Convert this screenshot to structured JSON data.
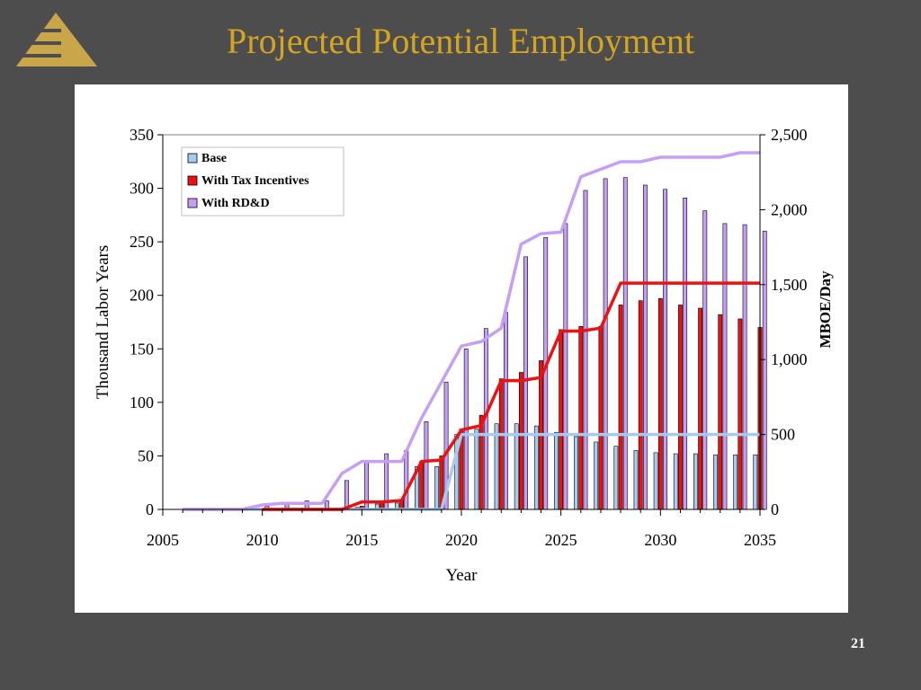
{
  "title": "Projected Potential Employment",
  "page_number": "21",
  "colors": {
    "background": "#4d4d4d",
    "title": "#d4a520",
    "base": "#a6cbf0",
    "tax": "#ee1111",
    "rdd": "#c79ef5"
  },
  "chart_data": {
    "type": "bar",
    "xlabel": "Year",
    "ylabel": "Thousand Labor Years",
    "y2label": "MBOE/Day",
    "xlim": [
      2005,
      2035
    ],
    "ylim": [
      0,
      350
    ],
    "y2lim": [
      0,
      2500
    ],
    "x_ticks": [
      "2005",
      "2010",
      "2015",
      "2020",
      "2025",
      "2030",
      "2035"
    ],
    "y_ticks": [
      "0",
      "50",
      "100",
      "150",
      "200",
      "250",
      "300",
      "350"
    ],
    "y2_ticks": [
      "0",
      "500",
      "1,000",
      "1,500",
      "2,000",
      "2,500"
    ],
    "legend_position": "top-left",
    "legend": [
      "Base",
      "With Tax Incentives",
      "With RD&D"
    ],
    "years": [
      2006,
      2007,
      2008,
      2009,
      2010,
      2011,
      2012,
      2013,
      2014,
      2015,
      2016,
      2017,
      2018,
      2019,
      2020,
      2021,
      2022,
      2023,
      2024,
      2025,
      2026,
      2027,
      2028,
      2029,
      2030,
      2031,
      2032,
      2033,
      2034,
      2035
    ],
    "bar_series": [
      {
        "name": "Base",
        "axis": "left",
        "values": [
          0,
          0,
          0,
          0,
          0,
          0,
          0,
          0,
          0,
          2,
          5,
          6,
          40,
          40,
          70,
          75,
          80,
          80,
          78,
          72,
          68,
          63,
          59,
          55,
          53,
          52,
          52,
          51,
          51,
          51
        ]
      },
      {
        "name": "With Tax Incentives",
        "axis": "left",
        "values": [
          0,
          0,
          0,
          0,
          0,
          0,
          0,
          0,
          0,
          3,
          6,
          9,
          45,
          50,
          75,
          88,
          122,
          128,
          139,
          168,
          171,
          171,
          191,
          195,
          197,
          191,
          188,
          182,
          178,
          170
        ]
      },
      {
        "name": "With RD&D",
        "axis": "left",
        "values": [
          0,
          1,
          0,
          0,
          3,
          5,
          8,
          8,
          27,
          44,
          52,
          55,
          82,
          119,
          150,
          169,
          184,
          236,
          254,
          267,
          298,
          309,
          310,
          303,
          299,
          291,
          279,
          267,
          266,
          260
        ]
      }
    ],
    "line_series": [
      {
        "name": "Base",
        "axis": "right",
        "x": [
          2006,
          2010,
          2015,
          2019,
          2020,
          2025,
          2035
        ],
        "values": [
          0,
          0,
          0,
          0,
          500,
          500,
          500
        ]
      },
      {
        "name": "With Tax Incentives",
        "axis": "right",
        "x": [
          2010,
          2013,
          2014,
          2015,
          2016,
          2017,
          2018,
          2019,
          2020,
          2021,
          2022,
          2023,
          2024,
          2025,
          2026,
          2027,
          2028,
          2029,
          2030,
          2031,
          2032,
          2033,
          2034,
          2035
        ],
        "values": [
          0,
          0,
          0,
          50,
          50,
          60,
          320,
          330,
          530,
          560,
          860,
          860,
          880,
          1190,
          1190,
          1210,
          1510,
          1510,
          1510,
          1510,
          1510,
          1510,
          1510,
          1510
        ]
      },
      {
        "name": "With RD&D",
        "axis": "right",
        "x": [
          2006,
          2009,
          2010,
          2011,
          2012,
          2013,
          2014,
          2015,
          2016,
          2017,
          2018,
          2019,
          2020,
          2021,
          2022,
          2023,
          2024,
          2025,
          2026,
          2027,
          2028,
          2029,
          2030,
          2031,
          2032,
          2033,
          2034,
          2035
        ],
        "values": [
          0,
          0,
          30,
          40,
          40,
          40,
          240,
          320,
          320,
          320,
          610,
          850,
          1090,
          1120,
          1210,
          1770,
          1840,
          1850,
          2220,
          2270,
          2320,
          2320,
          2350,
          2350,
          2350,
          2350,
          2380,
          2380
        ]
      }
    ]
  }
}
